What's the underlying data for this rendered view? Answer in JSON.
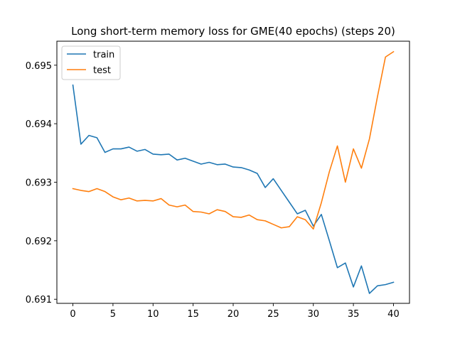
{
  "chart_data": {
    "type": "line",
    "title": "Long short-term memory loss for GME(40 epochs) (steps 20)",
    "xlabel": "",
    "ylabel": "",
    "xlim": [
      -2,
      42
    ],
    "ylim": [
      0.69093,
      0.69541
    ],
    "xticks": [
      0,
      5,
      10,
      15,
      20,
      25,
      30,
      35,
      40
    ],
    "yticks": [
      0.691,
      0.692,
      0.693,
      0.694,
      0.695
    ],
    "ytick_labels": [
      "0.691",
      "0.692",
      "0.693",
      "0.694",
      "0.695"
    ],
    "grid": false,
    "legend_position": "top-left",
    "x": [
      0,
      1,
      2,
      3,
      4,
      5,
      6,
      7,
      8,
      9,
      10,
      11,
      12,
      13,
      14,
      15,
      16,
      17,
      18,
      19,
      20,
      21,
      22,
      23,
      24,
      25,
      26,
      27,
      28,
      29,
      30,
      31,
      32,
      33,
      34,
      35,
      36,
      37,
      38,
      39,
      40
    ],
    "series": [
      {
        "name": "train",
        "color": "#1f77b4",
        "values": [
          0.69466,
          0.69365,
          0.6938,
          0.69376,
          0.69351,
          0.69357,
          0.69357,
          0.6936,
          0.69353,
          0.69356,
          0.69348,
          0.69347,
          0.69348,
          0.69338,
          0.69341,
          0.69336,
          0.69331,
          0.69334,
          0.6933,
          0.69331,
          0.69326,
          0.69325,
          0.69321,
          0.69315,
          0.69291,
          0.69306,
          0.69286,
          0.69266,
          0.69246,
          0.69252,
          0.69225,
          0.69245,
          0.692,
          0.69154,
          0.69162,
          0.69121,
          0.69157,
          0.6911,
          0.69123,
          0.69125,
          0.69129
        ]
      },
      {
        "name": "test",
        "color": "#ff7f0e",
        "values": [
          0.69289,
          0.69286,
          0.69284,
          0.69289,
          0.69284,
          0.69275,
          0.6927,
          0.69273,
          0.69268,
          0.69269,
          0.69268,
          0.69272,
          0.69261,
          0.69258,
          0.69261,
          0.6925,
          0.69249,
          0.69246,
          0.69253,
          0.6925,
          0.69241,
          0.6924,
          0.69244,
          0.69236,
          0.69234,
          0.69228,
          0.69222,
          0.69224,
          0.69241,
          0.69236,
          0.6922,
          0.69265,
          0.69318,
          0.69362,
          0.693,
          0.69357,
          0.69324,
          0.69374,
          0.69446,
          0.69514,
          0.69523
        ]
      }
    ]
  }
}
